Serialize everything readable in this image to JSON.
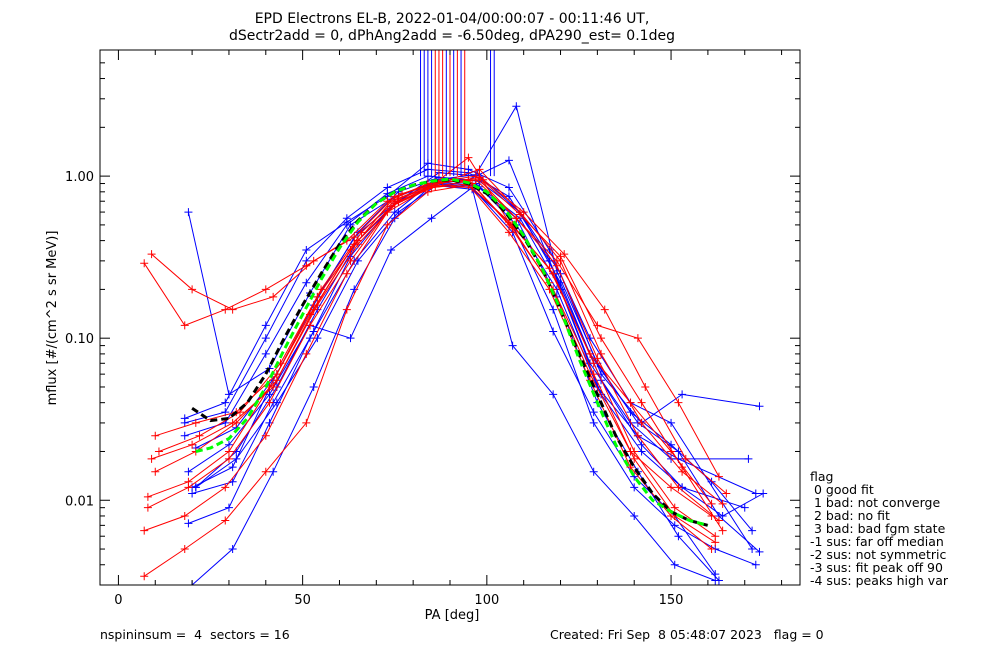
{
  "title": {
    "line1": "EPD Electrons EL-B, 2022-01-04/00:00:07 - 00:11:46 UT,",
    "line2": "dSectr2add = 0, dPhAng2add = -6.50deg, dPA290_est=   0.1deg"
  },
  "footer": {
    "left": "nspininsum =  4  sectors = 16",
    "right": "Created: Fri Sep  8 05:48:07 2023   flag = 0"
  },
  "legend": {
    "title": "flag",
    "items": [
      " 0 good fit",
      " 1 bad: not converge",
      " 2 bad: no fit",
      " 3 bad: bad fgm state",
      "-1 sus: far off median",
      "-2 sus: not symmetric",
      "-3 sus: fit peak off 90",
      "-4 sus: peaks high var"
    ]
  },
  "chart_data": {
    "type": "line",
    "xlabel": "PA [deg]",
    "ylabel": "mflux [#/(cm^2 s sr MeV)]",
    "xlim": [
      -5,
      185
    ],
    "ylim": [
      0.003,
      6.0
    ],
    "yscale": "log",
    "x_ticks": [
      0,
      50,
      100,
      150
    ],
    "x_tick_labels": [
      "0",
      "50",
      "100",
      "150"
    ],
    "y_ticks": [
      0.01,
      0.1,
      1.0
    ],
    "y_tick_labels": [
      "0.01",
      "0.10",
      "1.00"
    ],
    "grid": false,
    "colors": {
      "blue": "#0000ff",
      "red": "#ff0000",
      "green": "#00ff00",
      "black": "#000000"
    },
    "series": [
      {
        "color": "blue",
        "x": [
          19,
          30,
          41,
          52,
          63,
          74,
          85,
          96,
          107,
          118,
          129,
          140,
          151,
          162
        ],
        "y": [
          0.6,
          0.045,
          0.065,
          0.19,
          0.5,
          0.72,
          0.9,
          0.85,
          0.45,
          0.11,
          0.035,
          0.014,
          0.008,
          0.0035
        ]
      },
      {
        "color": "blue",
        "x": [
          20,
          31,
          42,
          53,
          64,
          75,
          86,
          97,
          108,
          119,
          130,
          141,
          152,
          173
        ],
        "y": [
          0.011,
          0.013,
          0.04,
          0.11,
          0.3,
          0.6,
          0.95,
          0.9,
          0.5,
          0.2,
          0.05,
          0.025,
          0.018,
          0.011
        ]
      },
      {
        "color": "blue",
        "x": [
          18,
          29,
          40,
          51,
          62,
          73,
          84,
          95,
          106,
          117,
          128,
          139,
          150,
          171
        ],
        "y": [
          0.03,
          0.035,
          0.1,
          0.3,
          0.55,
          0.85,
          1.1,
          1.05,
          0.75,
          0.3,
          0.07,
          0.03,
          0.018,
          0.018
        ]
      },
      {
        "color": "blue",
        "x": [
          21,
          32,
          43,
          54,
          65,
          76,
          87,
          98,
          109,
          120,
          131,
          142,
          153,
          174
        ],
        "y": [
          0.012,
          0.02,
          0.05,
          0.15,
          0.4,
          0.7,
          1.05,
          1.0,
          0.6,
          0.25,
          0.06,
          0.03,
          0.045,
          0.038
        ]
      },
      {
        "color": "blue",
        "x": [
          19,
          30,
          41,
          52,
          63,
          74,
          85,
          96,
          107,
          118,
          129,
          140,
          151,
          162,
          173
        ],
        "y": [
          0.0072,
          0.009,
          0.03,
          0.1,
          0.32,
          0.65,
          0.88,
          0.83,
          0.5,
          0.15,
          0.03,
          0.012,
          0.007,
          0.005,
          0.004
        ]
      },
      {
        "color": "blue",
        "x": [
          20,
          31,
          42,
          53,
          64,
          75,
          86,
          97,
          108,
          119,
          130,
          141,
          152,
          163
        ],
        "y": [
          0.003,
          0.005,
          0.015,
          0.05,
          0.2,
          0.55,
          0.92,
          0.88,
          0.55,
          0.18,
          0.04,
          0.015,
          0.006,
          0.0032
        ]
      },
      {
        "color": "blue",
        "x": [
          18,
          29,
          40,
          51,
          62,
          73,
          84,
          95,
          106,
          117,
          128,
          139,
          150,
          172
        ],
        "y": [
          0.032,
          0.04,
          0.12,
          0.35,
          0.52,
          0.75,
          1.2,
          1.1,
          0.85,
          0.35,
          0.1,
          0.04,
          0.03,
          0.005
        ]
      },
      {
        "color": "blue",
        "x": [
          21,
          32,
          43,
          54,
          65,
          76,
          87,
          98,
          109,
          120,
          131,
          142,
          153,
          170
        ],
        "y": [
          0.021,
          0.028,
          0.06,
          0.18,
          0.45,
          0.8,
          0.98,
          0.93,
          0.6,
          0.22,
          0.055,
          0.022,
          0.012,
          0.009
        ]
      },
      {
        "color": "blue",
        "x": [
          19,
          30,
          41,
          52,
          63,
          74,
          85,
          96,
          107,
          118,
          129,
          140,
          151,
          162
        ],
        "y": [
          0.015,
          0.022,
          0.045,
          0.12,
          0.1,
          0.35,
          0.55,
          0.85,
          0.09,
          0.045,
          0.015,
          0.008,
          0.004,
          0.0032
        ]
      },
      {
        "color": "blue",
        "x": [
          20,
          31,
          42,
          53,
          64,
          75,
          86,
          97,
          108,
          119,
          130,
          141,
          152,
          163,
          174
        ],
        "y": [
          0.012,
          0.016,
          0.055,
          0.16,
          0.42,
          0.68,
          0.95,
          1.02,
          2.7,
          0.26,
          0.07,
          0.03,
          0.02,
          0.008,
          0.0048
        ]
      },
      {
        "color": "blue",
        "x": [
          18,
          29,
          40,
          51,
          62,
          73,
          84,
          95,
          106,
          117,
          128,
          139,
          150,
          161,
          172
        ],
        "y": [
          0.025,
          0.03,
          0.08,
          0.22,
          0.5,
          0.78,
          1.0,
          0.95,
          1.25,
          0.3,
          0.08,
          0.035,
          0.022,
          0.013,
          0.0065
        ]
      },
      {
        "color": "blue",
        "x": [
          21,
          32,
          43,
          54,
          65,
          76,
          87,
          98,
          109,
          120,
          131,
          142,
          153,
          164,
          175
        ],
        "y": [
          0.012,
          0.018,
          0.04,
          0.1,
          0.3,
          0.6,
          0.9,
          0.86,
          0.55,
          0.2,
          0.045,
          0.02,
          0.012,
          0.008,
          0.011
        ]
      },
      {
        "color": "red",
        "x": [
          7,
          18,
          29,
          40,
          51,
          62,
          73,
          84,
          95,
          106,
          117,
          128,
          139,
          150,
          161
        ],
        "y": [
          0.29,
          0.12,
          0.15,
          0.2,
          0.28,
          0.4,
          0.7,
          0.9,
          0.95,
          0.5,
          0.22,
          0.06,
          0.02,
          0.012,
          0.008
        ]
      },
      {
        "color": "red",
        "x": [
          9,
          20,
          31,
          42,
          53,
          64,
          75,
          86,
          97,
          108,
          119,
          130,
          141,
          152,
          163
        ],
        "y": [
          0.33,
          0.2,
          0.15,
          0.18,
          0.3,
          0.42,
          0.75,
          0.92,
          1.0,
          0.55,
          0.3,
          0.12,
          0.1,
          0.04,
          0.014
        ]
      },
      {
        "color": "red",
        "x": [
          8,
          19,
          30,
          41,
          52,
          63,
          74,
          85,
          96,
          107,
          118,
          129,
          140,
          151,
          162
        ],
        "y": [
          0.0105,
          0.013,
          0.02,
          0.05,
          0.14,
          0.35,
          0.7,
          0.88,
          0.85,
          0.5,
          0.25,
          0.07,
          0.02,
          0.009,
          0.006
        ]
      },
      {
        "color": "red",
        "x": [
          10,
          21,
          32,
          43,
          54,
          65,
          76,
          87,
          98,
          109,
          120,
          131,
          142,
          153,
          164
        ],
        "y": [
          0.025,
          0.03,
          0.035,
          0.06,
          0.18,
          0.4,
          0.72,
          0.9,
          1.1,
          0.6,
          0.3,
          0.08,
          0.03,
          0.015,
          0.0095
        ]
      },
      {
        "color": "red",
        "x": [
          9,
          20,
          31,
          42,
          53,
          64,
          75,
          86,
          97,
          108,
          119,
          130,
          141,
          152,
          163
        ],
        "y": [
          0.018,
          0.022,
          0.03,
          0.05,
          0.15,
          0.38,
          0.68,
          0.86,
          0.95,
          0.55,
          0.28,
          0.075,
          0.025,
          0.012,
          0.0075
        ]
      },
      {
        "color": "red",
        "x": [
          8,
          19,
          30,
          41,
          52,
          63,
          74,
          85,
          96,
          107,
          118,
          129,
          140,
          151,
          162
        ],
        "y": [
          0.009,
          0.012,
          0.018,
          0.04,
          0.12,
          0.3,
          0.65,
          0.85,
          0.9,
          0.48,
          0.2,
          0.06,
          0.018,
          0.008,
          0.0055
        ]
      },
      {
        "color": "red",
        "x": [
          7,
          18,
          29,
          40,
          51,
          62,
          73,
          84,
          95,
          106,
          117,
          128,
          139,
          150,
          161
        ],
        "y": [
          0.0065,
          0.008,
          0.012,
          0.025,
          0.08,
          0.25,
          0.6,
          0.84,
          1.3,
          0.52,
          0.27,
          0.08,
          0.04,
          0.02,
          0.0095
        ]
      },
      {
        "color": "red",
        "x": [
          11,
          22,
          33,
          44,
          55,
          66,
          77,
          88,
          99,
          110,
          121,
          132,
          143,
          154,
          165
        ],
        "y": [
          0.02,
          0.025,
          0.035,
          0.07,
          0.2,
          0.45,
          0.78,
          0.92,
          0.95,
          0.6,
          0.33,
          0.15,
          0.05,
          0.018,
          0.011
        ]
      },
      {
        "color": "red",
        "x": [
          7,
          18,
          29,
          40,
          51,
          62,
          73,
          84,
          95,
          106,
          117,
          128,
          139,
          150,
          161
        ],
        "y": [
          0.0034,
          0.005,
          0.0075,
          0.015,
          0.03,
          0.15,
          0.5,
          0.8,
          0.88,
          0.45,
          0.2,
          0.055,
          0.016,
          0.008,
          0.005
        ]
      },
      {
        "color": "red",
        "x": [
          10,
          21,
          32,
          43,
          54,
          65,
          76,
          87,
          98,
          109,
          120,
          131,
          142,
          153,
          164
        ],
        "y": [
          0.015,
          0.02,
          0.03,
          0.055,
          0.16,
          0.38,
          0.7,
          0.9,
          0.98,
          0.58,
          0.32,
          0.1,
          0.04,
          0.016,
          0.0065
        ]
      }
    ],
    "spikes": [
      {
        "color": "blue",
        "x": [
          82,
          83,
          84,
          85,
          89,
          91,
          93,
          101,
          102
        ],
        "top": 6.0,
        "bottom": 1.0
      },
      {
        "color": "red",
        "x": [
          86,
          87,
          88,
          90,
          92,
          94
        ],
        "top": 6.0,
        "bottom": 1.0
      }
    ],
    "overlays": [
      {
        "color": "black",
        "dash": "dashed",
        "x": [
          20,
          25,
          30,
          35,
          40,
          45,
          50,
          55,
          60,
          65,
          70,
          75,
          80,
          85,
          90,
          95,
          100,
          105,
          110,
          115,
          120,
          125,
          130,
          135,
          140,
          145,
          150,
          155,
          160
        ],
        "y": [
          0.037,
          0.031,
          0.032,
          0.04,
          0.06,
          0.1,
          0.16,
          0.25,
          0.38,
          0.53,
          0.68,
          0.8,
          0.88,
          0.93,
          0.95,
          0.9,
          0.78,
          0.6,
          0.42,
          0.27,
          0.15,
          0.08,
          0.045,
          0.025,
          0.016,
          0.011,
          0.0085,
          0.0075,
          0.007
        ]
      },
      {
        "color": "green",
        "dash": "dashed",
        "x": [
          21,
          25,
          30,
          35,
          40,
          45,
          50,
          55,
          60,
          65,
          70,
          75,
          80,
          85,
          90,
          95,
          100,
          105,
          110,
          115,
          120,
          125,
          130,
          135,
          140,
          145,
          150,
          155,
          160
        ],
        "y": [
          0.02,
          0.021,
          0.024,
          0.032,
          0.05,
          0.085,
          0.14,
          0.23,
          0.36,
          0.52,
          0.68,
          0.8,
          0.88,
          0.93,
          0.96,
          0.91,
          0.8,
          0.62,
          0.43,
          0.27,
          0.15,
          0.075,
          0.04,
          0.022,
          0.014,
          0.01,
          0.0085,
          0.0075,
          0.007
        ]
      }
    ]
  }
}
